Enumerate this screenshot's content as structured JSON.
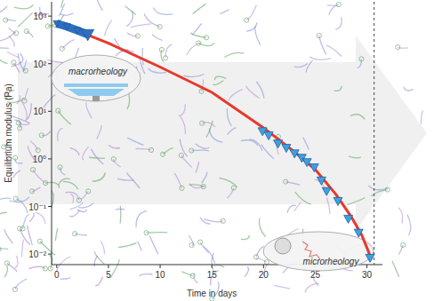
{
  "chart_data": {
    "type": "line",
    "log": "y",
    "grid": false,
    "x_label": "Time in days",
    "y_label": "Equilibrium modulus (Pa)",
    "xlim": [
      -0.5,
      31.5
    ],
    "ylim": [
      0.006,
      2000
    ],
    "xticks": [
      0,
      5,
      10,
      15,
      20,
      25,
      30
    ],
    "yticks": [
      {
        "value": 0.01,
        "label": "10⁻²"
      },
      {
        "value": 0.1,
        "label": "10⁻¹"
      },
      {
        "value": 1,
        "label": "10⁰"
      },
      {
        "value": 10,
        "label": "10¹"
      },
      {
        "value": 100,
        "label": "10²"
      },
      {
        "value": 1000,
        "label": "10³"
      }
    ],
    "vline": 30.7,
    "annotations": [
      "macrorheology",
      "microrheology"
    ],
    "series": [
      {
        "type": "line",
        "color": "#e8382c",
        "marker": "none",
        "line_style": "solid",
        "x": [
          0,
          2.9,
          5,
          10,
          15,
          20,
          23,
          25,
          27,
          28.5,
          29.5,
          30.1,
          30.4
        ],
        "values": [
          700,
          410,
          270,
          85,
          25,
          4.5,
          1.4,
          0.6,
          0.18,
          0.06,
          0.025,
          0.012,
          0.008
        ]
      },
      {
        "type": "line",
        "color": "#2f6fc0",
        "marker": "triangle",
        "line_style": "solid",
        "x": [
          0,
          1,
          2,
          3
        ],
        "values": [
          700,
          600,
          500,
          410
        ]
      },
      {
        "type": "scatter",
        "color": "#3fa0e0",
        "marker": "triangle",
        "x": [
          19.9,
          20.5,
          21.4,
          22.2,
          23.0,
          23.7,
          24.2,
          24.9,
          25.6,
          26.1,
          27.2,
          28.2,
          29.2,
          30.3
        ],
        "values": [
          3.8,
          3.1,
          2.1,
          1.7,
          1.3,
          1.05,
          0.85,
          0.66,
          0.35,
          0.21,
          0.13,
          0.055,
          0.028,
          0.0083
        ]
      }
    ]
  }
}
